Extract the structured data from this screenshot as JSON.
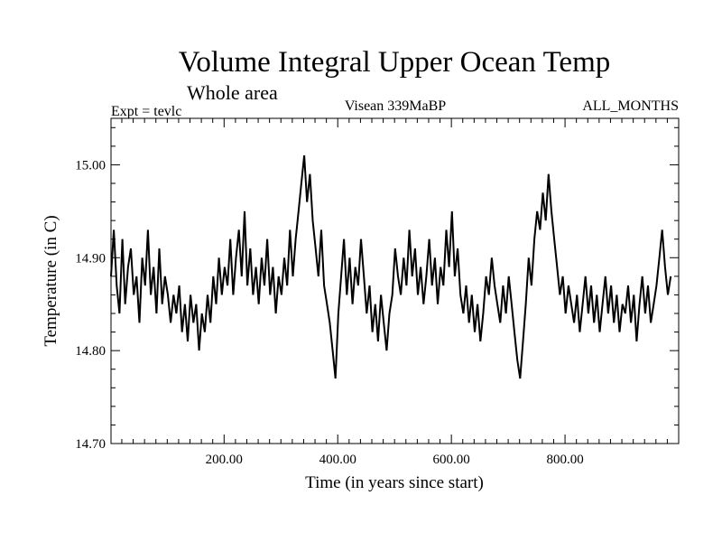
{
  "chart_data": {
    "type": "line",
    "title": "Volume Integral Upper Ocean Temp",
    "subtitle": "Whole area",
    "annotations": {
      "left": "Expt = tevlc",
      "center": "Visean 339MaBP",
      "right": "ALL_MONTHS"
    },
    "xlabel": "Time (in years since start)",
    "ylabel": "Temperature (in C)",
    "xlim": [
      1,
      1000
    ],
    "ylim": [
      14.7,
      15.05
    ],
    "xticks": [
      200,
      400,
      600,
      800
    ],
    "xtick_labels": [
      "200.00",
      "400.00",
      "600.00",
      "800.00"
    ],
    "yticks": [
      14.7,
      14.8,
      14.9,
      15.0
    ],
    "ytick_labels": [
      "14.70",
      "14.80",
      "14.90",
      "15.00"
    ],
    "grid": false,
    "series": [
      {
        "name": "Volume integral upper ocean temperature",
        "color": "#000000",
        "x_start": 1,
        "x_step": 5,
        "values": [
          14.88,
          14.93,
          14.87,
          14.84,
          14.92,
          14.85,
          14.89,
          14.91,
          14.86,
          14.88,
          14.83,
          14.9,
          14.87,
          14.93,
          14.86,
          14.89,
          14.84,
          14.91,
          14.85,
          14.88,
          14.86,
          14.83,
          14.86,
          14.84,
          14.87,
          14.82,
          14.85,
          14.81,
          14.86,
          14.83,
          14.85,
          14.8,
          14.84,
          14.82,
          14.86,
          14.83,
          14.88,
          14.85,
          14.9,
          14.86,
          14.89,
          14.87,
          14.92,
          14.86,
          14.9,
          14.93,
          14.88,
          14.95,
          14.87,
          14.91,
          14.86,
          14.89,
          14.85,
          14.9,
          14.87,
          14.92,
          14.86,
          14.89,
          14.84,
          14.88,
          14.86,
          14.9,
          14.87,
          14.93,
          14.88,
          14.92,
          14.95,
          14.98,
          15.01,
          14.96,
          14.99,
          14.94,
          14.91,
          14.88,
          14.93,
          14.87,
          14.85,
          14.83,
          14.8,
          14.77,
          14.84,
          14.88,
          14.92,
          14.86,
          14.9,
          14.85,
          14.89,
          14.87,
          14.92,
          14.88,
          14.84,
          14.87,
          14.82,
          14.85,
          14.81,
          14.86,
          14.83,
          14.8,
          14.84,
          14.86,
          14.91,
          14.88,
          14.86,
          14.9,
          14.87,
          14.93,
          14.88,
          14.91,
          14.86,
          14.89,
          14.85,
          14.88,
          14.92,
          14.87,
          14.9,
          14.85,
          14.89,
          14.87,
          14.93,
          14.89,
          14.95,
          14.88,
          14.91,
          14.86,
          14.84,
          14.87,
          14.83,
          14.86,
          14.82,
          14.85,
          14.81,
          14.84,
          14.88,
          14.86,
          14.9,
          14.87,
          14.85,
          14.83,
          14.87,
          14.84,
          14.88,
          14.85,
          14.82,
          14.79,
          14.77,
          14.81,
          14.85,
          14.9,
          14.87,
          14.92,
          14.95,
          14.93,
          14.97,
          14.94,
          14.99,
          14.95,
          14.92,
          14.89,
          14.86,
          14.88,
          14.84,
          14.87,
          14.85,
          14.83,
          14.86,
          14.82,
          14.85,
          14.88,
          14.84,
          14.87,
          14.83,
          14.86,
          14.82,
          14.85,
          14.88,
          14.84,
          14.87,
          14.83,
          14.86,
          14.82,
          14.85,
          14.84,
          14.87,
          14.83,
          14.86,
          14.81,
          14.85,
          14.88,
          14.84,
          14.87,
          14.83,
          14.85,
          14.87,
          14.9,
          14.93,
          14.89,
          14.86,
          14.88
        ]
      }
    ]
  }
}
